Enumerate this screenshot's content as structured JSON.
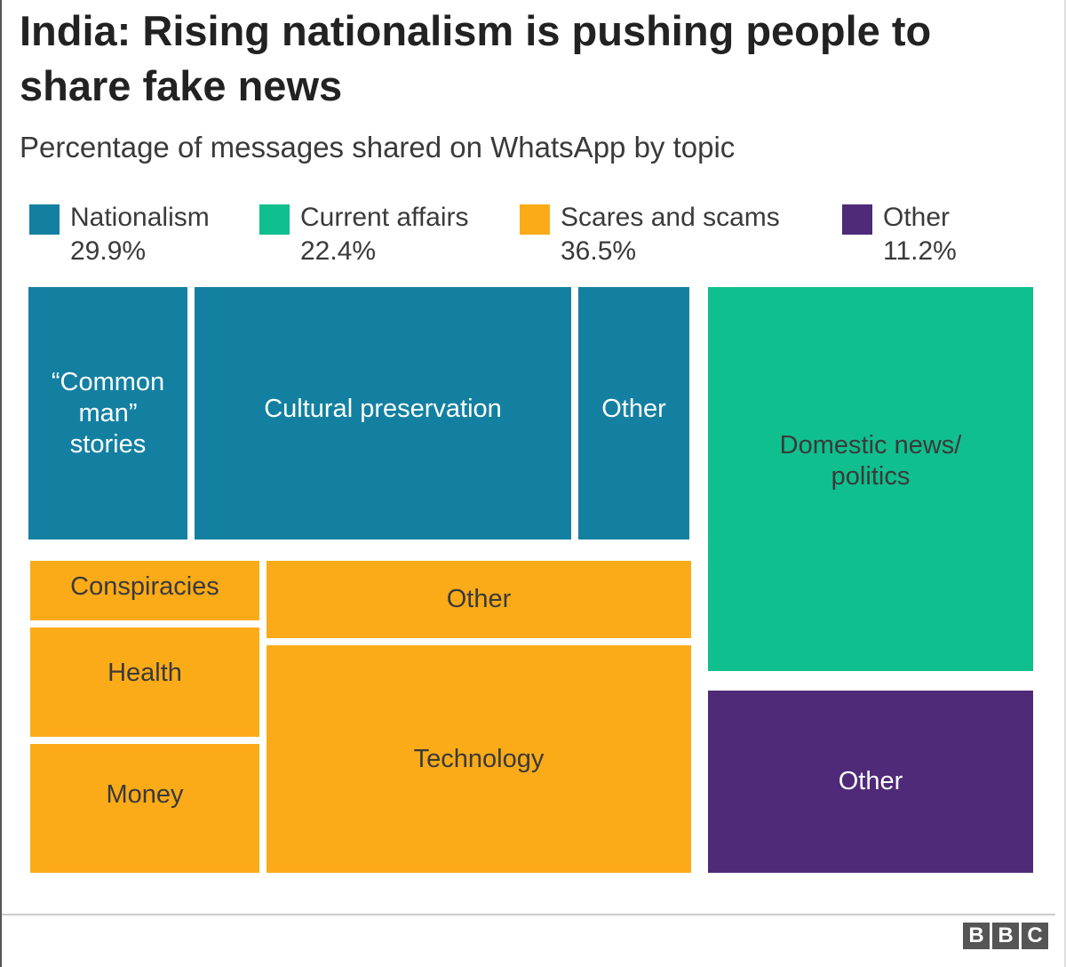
{
  "chart_data": {
    "type": "treemap",
    "title": "India: Rising nationalism is pushing people to share fake news",
    "subtitle": "Percentage of messages shared on WhatsApp by topic",
    "categories": [
      {
        "name": "Nationalism",
        "value": 29.9,
        "value_label": "29.9%",
        "color": "#1380a1",
        "children": [
          "“Common man” stories",
          "Cultural preservation",
          "Other"
        ]
      },
      {
        "name": "Current affairs",
        "value": 22.4,
        "value_label": "22.4%",
        "color": "#0fbf8e",
        "children": [
          "Domestic news/ politics"
        ]
      },
      {
        "name": "Scares and scams",
        "value": 36.5,
        "value_label": "36.5%",
        "color": "#fbab18",
        "children": [
          "Conspiracies",
          "Health",
          "Money",
          "Other",
          "Technology"
        ]
      },
      {
        "name": "Other",
        "value": 11.2,
        "value_label": "11.2%",
        "color": "#4e2a78",
        "children": [
          "Other"
        ]
      }
    ]
  },
  "tiles": {
    "common_man": "“Common man” stories",
    "cultural": "Cultural preservation",
    "nat_other": "Other",
    "domestic": "Domestic news/ politics",
    "conspiracies": "Conspiracies",
    "health": "Health",
    "money": "Money",
    "scares_other": "Other",
    "technology": "Technology",
    "other_other": "Other"
  },
  "footer": {
    "logo_letters": [
      "B",
      "B",
      "C"
    ]
  }
}
